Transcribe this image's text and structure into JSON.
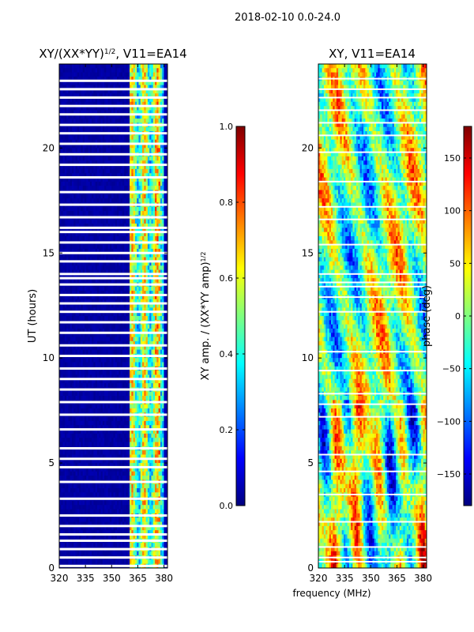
{
  "suptitle": "2018-02-10 0.0-24.0",
  "colors": {
    "jet": [
      "#00007f",
      "#0000ff",
      "#007fff",
      "#00ffff",
      "#7fff7f",
      "#ffff00",
      "#ff7f00",
      "#ff0000",
      "#7f0000"
    ],
    "background": "#ffffff",
    "axis": "#000000"
  },
  "chart_data": [
    {
      "type": "heatmap",
      "id": "amplitude",
      "title": "XY/(XX*YY)",
      "title_sup": "1/2",
      "title_suffix": ", V11=EA14",
      "xlabel": "",
      "ylabel": "UT (hours)",
      "xlim": [
        320,
        382
      ],
      "ylim": [
        0,
        24
      ],
      "xticks": [
        320,
        335,
        350,
        365,
        380
      ],
      "yticks": [
        0,
        5,
        10,
        15,
        20
      ],
      "colorbar": {
        "label": "XY amp. / (XX*YY amp)",
        "label_sup": "1/2",
        "range": [
          0.0,
          1.0
        ],
        "ticks": [
          "0.0",
          "0.2",
          "0.4",
          "0.6",
          "0.8",
          "1.0"
        ],
        "tick_values": [
          0.0,
          0.2,
          0.4,
          0.6,
          0.8,
          1.0
        ]
      },
      "description": "Background amplitude near 0.0 (dark blue) across 320-360 MHz; elevated amplitudes 0.3-0.7 in band 360-379 MHz; white horizontal gaps indicate flagged times."
    },
    {
      "type": "heatmap",
      "id": "phase",
      "title": "XY, V11=EA14",
      "xlabel": "frequency (MHz)",
      "ylabel": "",
      "xlim": [
        320,
        382
      ],
      "ylim": [
        0,
        24
      ],
      "xticks": [
        320,
        335,
        350,
        365,
        380
      ],
      "yticks": [
        0,
        5,
        10,
        15,
        20
      ],
      "colorbar": {
        "label": "phase (deg)",
        "range": [
          -180,
          180
        ],
        "ticks": [
          "−150",
          "−100",
          "−50",
          "0",
          "50",
          "100",
          "150"
        ],
        "tick_values": [
          -150,
          -100,
          -50,
          0,
          50,
          100,
          150
        ]
      },
      "description": "Phase varies across full range -180 to 180 deg, with vertical structure at ~326, 333, 345 MHz; white horizontal gaps at flagged times."
    }
  ]
}
